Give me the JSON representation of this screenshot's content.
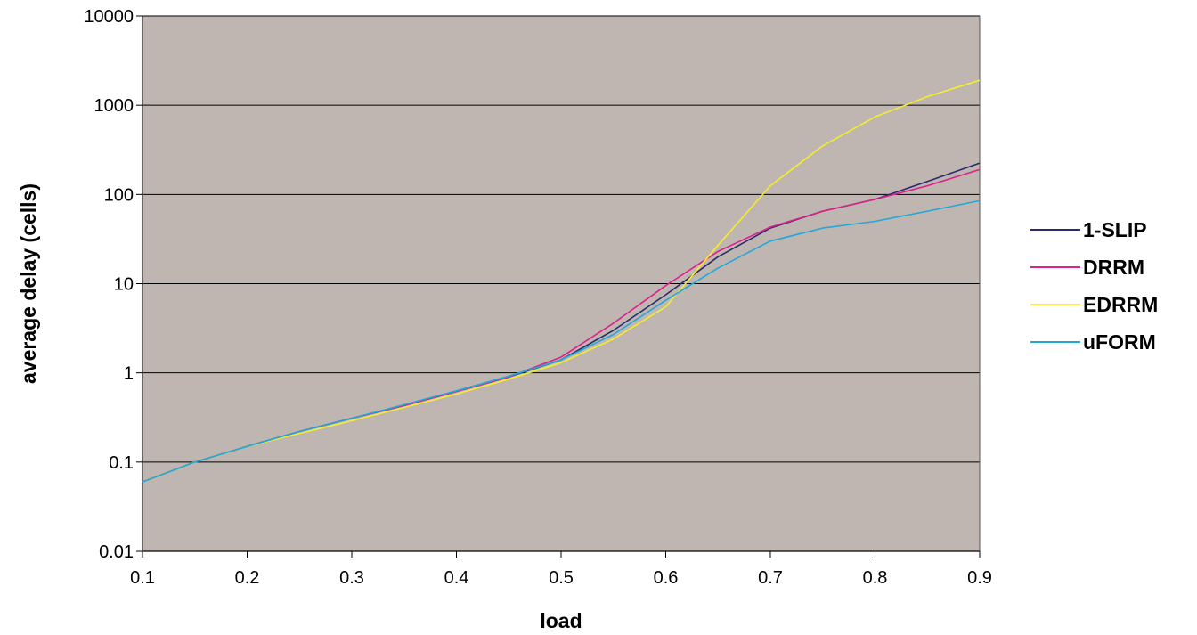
{
  "chart_data": {
    "type": "line",
    "xlabel": "load",
    "ylabel": "average delay (cells)",
    "xlim": [
      0.1,
      0.9
    ],
    "ylim": [
      0.01,
      10000
    ],
    "yscale": "log",
    "x_ticks": [
      "0.1",
      "0.2",
      "0.3",
      "0.4",
      "0.5",
      "0.6",
      "0.7",
      "0.8",
      "0.9"
    ],
    "y_ticks": [
      "0.01",
      "0.1",
      "1",
      "10",
      "100",
      "1000",
      "10000"
    ],
    "grid": "horizontal",
    "legend_position": "right",
    "plot_background": "#bfb6b2",
    "x": [
      0.1,
      0.15,
      0.2,
      0.25,
      0.3,
      0.35,
      0.4,
      0.45,
      0.5,
      0.55,
      0.6,
      0.65,
      0.7,
      0.75,
      0.8,
      0.85,
      0.9
    ],
    "series": [
      {
        "name": "1-SLIP",
        "color": "#2b2b6b",
        "values": [
          0.06,
          0.1,
          0.15,
          0.22,
          0.31,
          0.43,
          0.62,
          0.9,
          1.4,
          3.0,
          7.5,
          20,
          42,
          65,
          88,
          140,
          225
        ]
      },
      {
        "name": "DRRM",
        "color": "#e0208a",
        "values": [
          0.06,
          0.1,
          0.15,
          0.22,
          0.31,
          0.43,
          0.62,
          0.9,
          1.5,
          3.6,
          9.5,
          23,
          43,
          65,
          88,
          125,
          190
        ]
      },
      {
        "name": "EDRRM",
        "color": "#f5ec2c",
        "values": [
          0.06,
          0.1,
          0.15,
          0.21,
          0.29,
          0.41,
          0.58,
          0.85,
          1.3,
          2.4,
          5.5,
          27,
          125,
          350,
          740,
          1250,
          1900
        ]
      },
      {
        "name": "uFORM",
        "color": "#22a8d8",
        "values": [
          0.06,
          0.1,
          0.15,
          0.22,
          0.31,
          0.44,
          0.63,
          0.92,
          1.4,
          2.7,
          6.5,
          15,
          30,
          42,
          50,
          65,
          85
        ]
      }
    ]
  }
}
